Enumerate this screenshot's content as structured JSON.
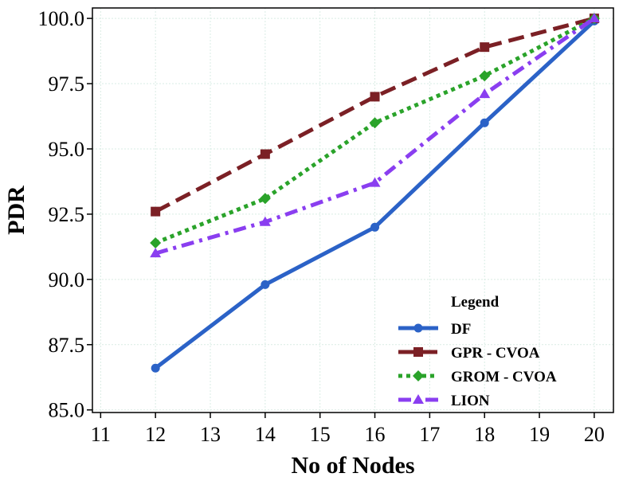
{
  "chart_data": {
    "type": "line",
    "title": "",
    "xlabel": "No of Nodes",
    "ylabel": "PDR",
    "xlim": [
      10.85,
      20.35
    ],
    "ylim": [
      84.9,
      100.4
    ],
    "x_ticks": [
      11,
      12,
      13,
      14,
      15,
      16,
      17,
      18,
      19,
      20
    ],
    "x_tick_labels": [
      "11",
      "12",
      "13",
      "14",
      "15",
      "16",
      "17",
      "18",
      "19",
      "20"
    ],
    "y_ticks": [
      85.0,
      87.5,
      90.0,
      92.5,
      95.0,
      97.5,
      100.0
    ],
    "y_tick_labels": [
      "85.0",
      "87.5",
      "90.0",
      "92.5",
      "95.0",
      "97.5",
      "100.0"
    ],
    "grid": true,
    "legend": {
      "title": "Legend",
      "position": "bottom-right"
    },
    "x": [
      12,
      14,
      16,
      18,
      20
    ],
    "series": [
      {
        "name": "DF",
        "values": [
          86.6,
          89.8,
          92.0,
          96.0,
          99.9
        ],
        "color": "#2b62c7",
        "dash": "solid",
        "marker": "circle"
      },
      {
        "name": "GPR - CVOA",
        "values": [
          92.6,
          94.8,
          97.0,
          98.9,
          100.0
        ],
        "color": "#7b2025",
        "dash": "dashed",
        "marker": "square"
      },
      {
        "name": "GROM - CVOA",
        "values": [
          91.4,
          93.1,
          96.0,
          97.8,
          100.0
        ],
        "color": "#2aa32a",
        "dash": "dotted",
        "marker": "diamond"
      },
      {
        "name": "LION",
        "values": [
          91.0,
          92.2,
          93.7,
          97.1,
          100.0
        ],
        "color": "#8a3ef0",
        "dash": "dashdot",
        "marker": "triangle"
      }
    ]
  }
}
